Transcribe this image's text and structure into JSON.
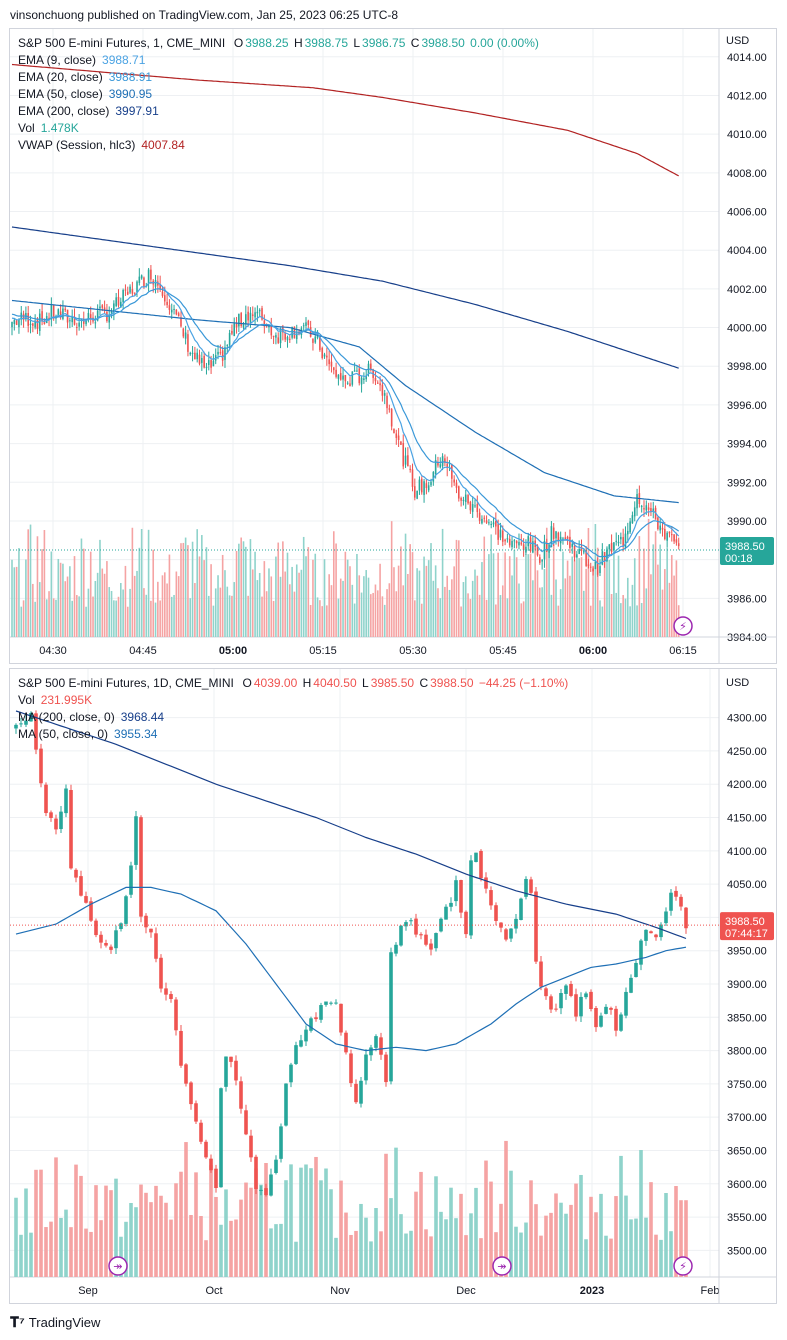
{
  "header": {
    "text": "vinsonchuong published on TradingView.com, Jan 25, 2023 06:25 UTC-8"
  },
  "footer": {
    "brand": "TradingView",
    "logo_icon": "tradingview-logo-icon"
  },
  "colors": {
    "up": "#26a69a",
    "down": "#ef5350",
    "ema9": "#4ba3e3",
    "ema20": "#3a98d8",
    "ema50": "#1e6fb5",
    "ema200": "#173f8a",
    "vwap": "#b22222",
    "vol_up": "#8fd3cb",
    "vol_down": "#f5a3a3",
    "grid": "#eef0f3"
  },
  "chart_data": [
    {
      "type": "candlestick",
      "title": "S&P 500 E-mini Futures, 1, CME_MINI",
      "ohlc": {
        "O": "3988.25",
        "H": "3988.75",
        "L": "3986.75",
        "C": "3988.50",
        "change": "0.00 (0.00%)"
      },
      "legend": [
        {
          "label": "EMA (9, close)",
          "value": "3988.71",
          "color": "#4ba3e3"
        },
        {
          "label": "EMA (20, close)",
          "value": "3988.91",
          "color": "#3a98d8"
        },
        {
          "label": "EMA (50, close)",
          "value": "3990.95",
          "color": "#1e6fb5"
        },
        {
          "label": "EMA (200, close)",
          "value": "3997.91",
          "color": "#173f8a"
        },
        {
          "label": "Vol",
          "value": "1.478K",
          "color": "#26a69a"
        },
        {
          "label": "VWAP (Session, hlc3)",
          "value": "4007.84",
          "color": "#b22222"
        }
      ],
      "currency": "USD",
      "y_ticks": [
        "4014.00",
        "4012.00",
        "4010.00",
        "4008.00",
        "4006.00",
        "4004.00",
        "4002.00",
        "4000.00",
        "3998.00",
        "3996.00",
        "3994.00",
        "3992.00",
        "3990.00",
        "3988.00",
        "3986.00",
        "3984.00"
      ],
      "ylim": [
        3984,
        4014.3
      ],
      "x_ticks": [
        "04:30",
        "04:45",
        "05:00",
        "05:15",
        "05:30",
        "05:45",
        "06:00",
        "06:15"
      ],
      "last_price": "3988.50",
      "countdown": "00:18",
      "close_anchors": [
        [
          0,
          4000.3
        ],
        [
          6,
          4000.5
        ],
        [
          12,
          4000.3
        ],
        [
          18,
          4000.8
        ],
        [
          24,
          4000.5
        ],
        [
          30,
          4000.3
        ],
        [
          36,
          4000.6
        ],
        [
          42,
          4000.8
        ],
        [
          48,
          4001.5
        ],
        [
          54,
          4002.2
        ],
        [
          60,
          4002.8
        ],
        [
          66,
          4001.8
        ],
        [
          72,
          4000.2
        ],
        [
          78,
          3998.6
        ],
        [
          84,
          3997.8
        ],
        [
          90,
          3998.4
        ],
        [
          96,
          4000.0
        ],
        [
          102,
          4000.8
        ],
        [
          108,
          4000.5
        ],
        [
          114,
          3999.6
        ],
        [
          120,
          3999.8
        ],
        [
          126,
          4000.0
        ],
        [
          132,
          3999.2
        ],
        [
          138,
          3997.8
        ],
        [
          144,
          3997.2
        ],
        [
          150,
          3997.5
        ],
        [
          156,
          3997.8
        ],
        [
          162,
          3996.2
        ],
        [
          168,
          3993.6
        ],
        [
          174,
          3991.6
        ],
        [
          180,
          3992.0
        ],
        [
          186,
          3993.5
        ],
        [
          192,
          3991.5
        ],
        [
          198,
          3990.8
        ],
        [
          204,
          3990.2
        ],
        [
          210,
          3989.4
        ],
        [
          216,
          3988.7
        ],
        [
          222,
          3988.9
        ],
        [
          228,
          3988.2
        ],
        [
          234,
          3989.5
        ],
        [
          240,
          3988.9
        ],
        [
          246,
          3988.2
        ],
        [
          252,
          3987.5
        ],
        [
          258,
          3988.5
        ],
        [
          264,
          3989.0
        ],
        [
          270,
          3991.4
        ],
        [
          276,
          3990.4
        ],
        [
          282,
          3989.4
        ],
        [
          288,
          3988.5
        ]
      ],
      "ema200_anchors": [
        [
          0,
          4005.2
        ],
        [
          60,
          4004.2
        ],
        [
          120,
          4003.2
        ],
        [
          160,
          4002.4
        ],
        [
          200,
          4001.2
        ],
        [
          240,
          3999.8
        ],
        [
          288,
          3997.9
        ]
      ],
      "ema50_anchors": [
        [
          0,
          4001.4
        ],
        [
          40,
          4000.9
        ],
        [
          80,
          4000.4
        ],
        [
          120,
          4000.0
        ],
        [
          150,
          3999.0
        ],
        [
          170,
          3997.0
        ],
        [
          200,
          3994.6
        ],
        [
          230,
          3992.5
        ],
        [
          260,
          3991.3
        ],
        [
          288,
          3990.95
        ]
      ],
      "vwap_anchors": [
        [
          0,
          4013.6
        ],
        [
          80,
          4012.8
        ],
        [
          130,
          4012.4
        ],
        [
          160,
          4011.9
        ],
        [
          200,
          4011.1
        ],
        [
          240,
          4010.2
        ],
        [
          270,
          4009.0
        ],
        [
          288,
          4007.84
        ]
      ],
      "volume_max": 2.0,
      "n_bars": 289
    },
    {
      "type": "candlestick",
      "title": "S&P 500 E-mini Futures, 1D, CME_MINI",
      "ohlc": {
        "O": "4039.00",
        "H": "4040.50",
        "L": "3985.50",
        "C": "3988.50",
        "change": "−44.25 (−1.10%)"
      },
      "legend": [
        {
          "label": "Vol",
          "value": "231.995K",
          "color": "#ef5350"
        },
        {
          "label": "MA (200, close, 0)",
          "value": "3968.44",
          "color": "#173f8a"
        },
        {
          "label": "MA (50, close, 0)",
          "value": "3955.34",
          "color": "#1e6fb5"
        }
      ],
      "currency": "USD",
      "y_ticks": [
        "4300.00",
        "4250.00",
        "4200.00",
        "4150.00",
        "4100.00",
        "4050.00",
        "4000.00",
        "3950.00",
        "3900.00",
        "3850.00",
        "3800.00",
        "3750.00",
        "3700.00",
        "3650.00",
        "3600.00",
        "3550.00",
        "3500.00"
      ],
      "ylim": [
        3460,
        4340
      ],
      "x_ticks": [
        "Sep",
        "Oct",
        "Nov",
        "Dec",
        "2023",
        "Feb"
      ],
      "last_price": "3988.50",
      "countdown": "07:44:17",
      "close_anchors": [
        [
          0,
          4285
        ],
        [
          3,
          4300
        ],
        [
          4,
          4260
        ],
        [
          6,
          4150
        ],
        [
          8,
          4140
        ],
        [
          10,
          4185
        ],
        [
          11,
          4080
        ],
        [
          13,
          4040
        ],
        [
          15,
          3990
        ],
        [
          17,
          3960
        ],
        [
          19,
          3955
        ],
        [
          21,
          4000
        ],
        [
          23,
          4080
        ],
        [
          24,
          4150
        ],
        [
          25,
          4010
        ],
        [
          27,
          3975
        ],
        [
          29,
          3900
        ],
        [
          31,
          3870
        ],
        [
          33,
          3780
        ],
        [
          35,
          3720
        ],
        [
          37,
          3660
        ],
        [
          38,
          3640
        ],
        [
          40,
          3590
        ],
        [
          41,
          3750
        ],
        [
          42,
          3800
        ],
        [
          44,
          3750
        ],
        [
          46,
          3670
        ],
        [
          48,
          3600
        ],
        [
          50,
          3585
        ],
        [
          52,
          3640
        ],
        [
          54,
          3750
        ],
        [
          56,
          3800
        ],
        [
          58,
          3840
        ],
        [
          60,
          3855
        ],
        [
          62,
          3880
        ],
        [
          64,
          3870
        ],
        [
          66,
          3800
        ],
        [
          67,
          3750
        ],
        [
          68,
          3720
        ],
        [
          70,
          3790
        ],
        [
          72,
          3830
        ],
        [
          74,
          3760
        ],
        [
          75,
          3950
        ],
        [
          77,
          3985
        ],
        [
          79,
          3990
        ],
        [
          81,
          3970
        ],
        [
          83,
          3960
        ],
        [
          85,
          4000
        ],
        [
          87,
          4030
        ],
        [
          88,
          4050
        ],
        [
          90,
          3980
        ],
        [
          91,
          4080
        ],
        [
          92,
          4090
        ],
        [
          94,
          4040
        ],
        [
          96,
          4000
        ],
        [
          98,
          3960
        ],
        [
          100,
          4000
        ],
        [
          102,
          4050
        ],
        [
          103,
          4030
        ],
        [
          104,
          3940
        ],
        [
          105,
          3900
        ],
        [
          107,
          3860
        ],
        [
          109,
          3880
        ],
        [
          110,
          3900
        ],
        [
          112,
          3860
        ],
        [
          114,
          3890
        ],
        [
          116,
          3840
        ],
        [
          118,
          3870
        ],
        [
          120,
          3835
        ],
        [
          122,
          3890
        ],
        [
          124,
          3940
        ],
        [
          126,
          3980
        ],
        [
          128,
          3970
        ],
        [
          130,
          4000
        ],
        [
          131,
          4030
        ],
        [
          132,
          4040
        ],
        [
          134,
          3988
        ]
      ],
      "ma200_anchors": [
        [
          0,
          4310
        ],
        [
          20,
          4260
        ],
        [
          40,
          4200
        ],
        [
          60,
          4150
        ],
        [
          70,
          4120
        ],
        [
          80,
          4095
        ],
        [
          90,
          4065
        ],
        [
          100,
          4040
        ],
        [
          110,
          4020
        ],
        [
          120,
          4005
        ],
        [
          128,
          3985
        ],
        [
          134,
          3968.4
        ]
      ],
      "ma50_anchors": [
        [
          0,
          3975
        ],
        [
          8,
          3990
        ],
        [
          15,
          4020
        ],
        [
          22,
          4045
        ],
        [
          27,
          4045
        ],
        [
          33,
          4035
        ],
        [
          40,
          4010
        ],
        [
          46,
          3960
        ],
        [
          52,
          3900
        ],
        [
          58,
          3840
        ],
        [
          64,
          3810
        ],
        [
          70,
          3800
        ],
        [
          76,
          3805
        ],
        [
          82,
          3800
        ],
        [
          88,
          3810
        ],
        [
          95,
          3840
        ],
        [
          100,
          3870
        ],
        [
          105,
          3895
        ],
        [
          110,
          3910
        ],
        [
          115,
          3925
        ],
        [
          120,
          3930
        ],
        [
          126,
          3940
        ],
        [
          130,
          3950
        ],
        [
          134,
          3955.3
        ]
      ],
      "volume_max": 400,
      "n_bars": 135
    }
  ],
  "markers": {
    "icon": "lightning-icon",
    "ipo_icon": "dividend-arrow-icon"
  }
}
